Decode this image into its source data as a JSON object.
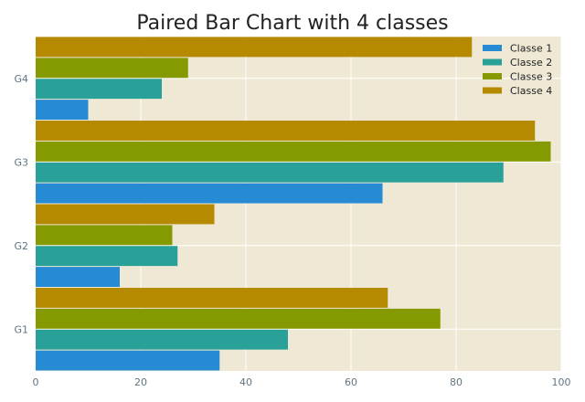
{
  "chart_data": {
    "type": "bar",
    "orientation": "horizontal",
    "title": "Paired Bar Chart with 4 classes",
    "xlabel": "",
    "ylabel": "",
    "xlim": [
      0,
      100
    ],
    "x_ticks": [
      0,
      20,
      40,
      60,
      80,
      100
    ],
    "categories": [
      "G1",
      "G2",
      "G3",
      "G4"
    ],
    "series": [
      {
        "name": "Classe 1",
        "color": "#268bd2",
        "values": [
          35,
          16,
          66,
          10
        ]
      },
      {
        "name": "Classe 2",
        "color": "#2aa198",
        "values": [
          48,
          27,
          89,
          24
        ]
      },
      {
        "name": "Classe 3",
        "color": "#859900",
        "values": [
          77,
          26,
          98,
          29
        ]
      },
      {
        "name": "Classe 4",
        "color": "#b58900",
        "values": [
          67,
          34,
          95,
          83
        ]
      }
    ],
    "grid": true,
    "legend_position": "top-right",
    "background": "#eee8d5",
    "grid_color": "#ffffff"
  }
}
